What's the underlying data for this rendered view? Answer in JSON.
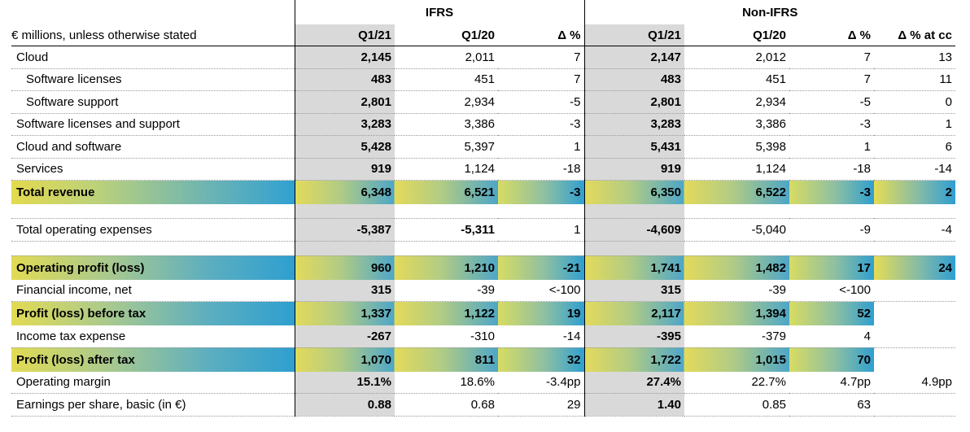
{
  "header": {
    "unit_note": "€ millions, unless otherwise stated",
    "group_ifrs": "IFRS",
    "group_nonifrs": "Non-IFRS",
    "cols": [
      "Q1/21",
      "Q1/20",
      "Δ %",
      "Q1/21",
      "Q1/20",
      "Δ %",
      "Δ % at cc"
    ]
  },
  "rows": [
    {
      "label": "Cloud",
      "v": [
        "2,145",
        "2,011",
        "7",
        "2,147",
        "2,012",
        "7",
        "13"
      ]
    },
    {
      "label": "Software licenses",
      "v": [
        "483",
        "451",
        "7",
        "483",
        "451",
        "7",
        "11"
      ]
    },
    {
      "label": "Software support",
      "v": [
        "2,801",
        "2,934",
        "-5",
        "2,801",
        "2,934",
        "-5",
        "0"
      ]
    },
    {
      "label": "Software licenses and support",
      "v": [
        "3,283",
        "3,386",
        "-3",
        "3,283",
        "3,386",
        "-3",
        "1"
      ]
    },
    {
      "label": "Cloud and software",
      "v": [
        "5,428",
        "5,397",
        "1",
        "5,431",
        "5,398",
        "1",
        "6"
      ]
    },
    {
      "label": "Services",
      "v": [
        "919",
        "1,124",
        "-18",
        "919",
        "1,124",
        "-18",
        "-14"
      ]
    },
    {
      "label": "Total revenue",
      "v": [
        "6,348",
        "6,521",
        "-3",
        "6,350",
        "6,522",
        "-3",
        "2"
      ]
    },
    {
      "label": "Total operating expenses",
      "v": [
        "-5,387",
        "-5,311",
        "1",
        "-4,609",
        "-5,040",
        "-9",
        "-4"
      ]
    },
    {
      "label": "Operating profit (loss)",
      "v": [
        "960",
        "1,210",
        "-21",
        "1,741",
        "1,482",
        "17",
        "24"
      ]
    },
    {
      "label": "Financial income, net",
      "v": [
        "315",
        "-39",
        "<-100",
        "315",
        "-39",
        "<-100",
        ""
      ]
    },
    {
      "label": "Profit (loss) before tax",
      "v": [
        "1,337",
        "1,122",
        "19",
        "2,117",
        "1,394",
        "52",
        ""
      ]
    },
    {
      "label": "Income tax expense",
      "v": [
        "-267",
        "-310",
        "-14",
        "-395",
        "-379",
        "4",
        ""
      ]
    },
    {
      "label": "Profit (loss) after tax",
      "v": [
        "1,070",
        "811",
        "32",
        "1,722",
        "1,015",
        "70",
        ""
      ]
    },
    {
      "label": "Operating margin",
      "v": [
        "15.1%",
        "18.6%",
        "-3.4pp",
        "27.4%",
        "22.7%",
        "4.7pp",
        "4.9pp"
      ]
    },
    {
      "label": "Earnings per share, basic (in €)",
      "v": [
        "0.88",
        "0.68",
        "29",
        "1.40",
        "0.85",
        "63",
        ""
      ]
    }
  ],
  "colors": {
    "grey_col": "#d9d9d9",
    "accent_yellow": "#e3da4e",
    "accent_blue": "#2e9fd0"
  }
}
